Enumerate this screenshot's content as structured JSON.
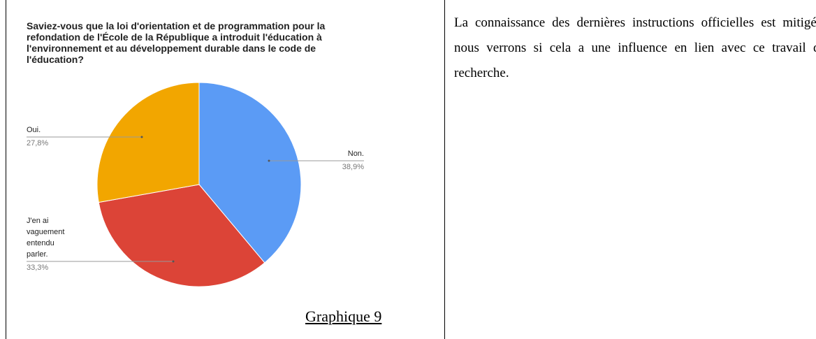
{
  "chart_data": {
    "type": "pie",
    "title": "Saviez-vous que la loi d'orientation et de programmation pour la refondation de l'École de la République a introduit l'éducation à l'environnement et au développement durable dans le code de l'éducation?",
    "categories": [
      "Non.",
      "J'en ai vaguement entendu parler.",
      "Oui."
    ],
    "values": [
      38.9,
      33.3,
      27.8
    ],
    "value_labels": [
      "38,9%",
      "33,3%",
      "27,8%"
    ],
    "colors": [
      "#5b9bf5",
      "#dc4437",
      "#f2a600"
    ]
  },
  "caption": "Graphique 9",
  "paragraph": "La connaissance des dernières instructions officielles est mitigée, nous verrons si cela a une influence en lien avec ce travail de recherche."
}
